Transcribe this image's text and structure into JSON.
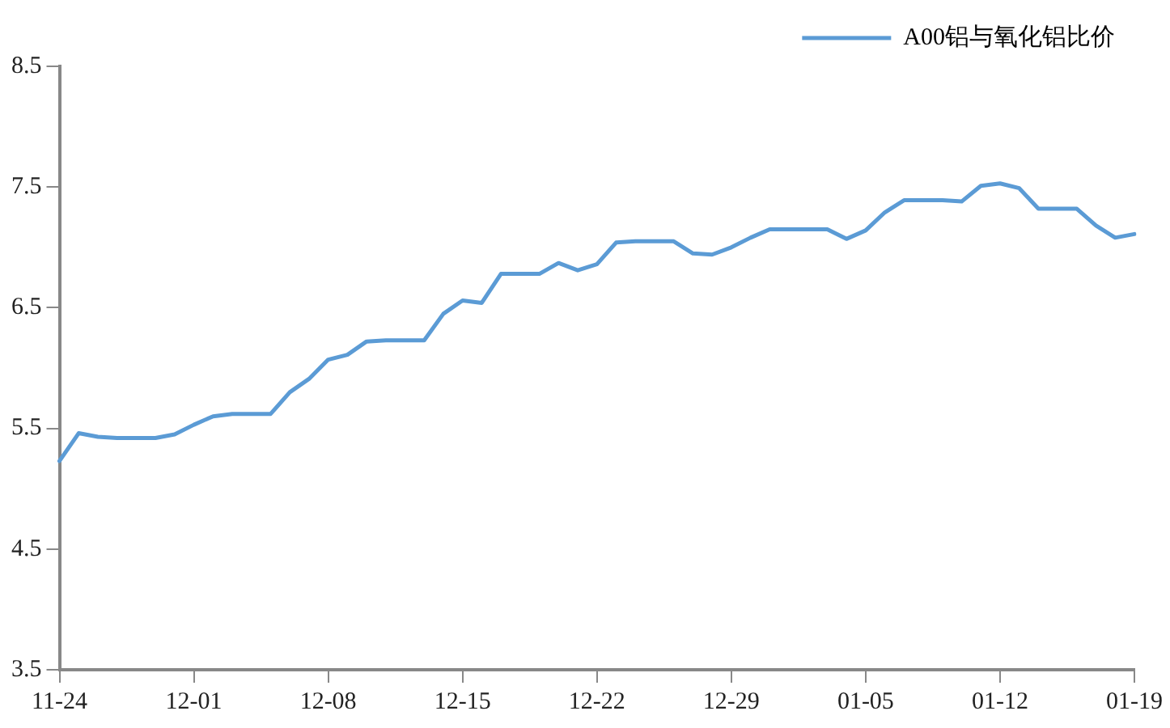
{
  "chart_data": {
    "type": "line",
    "categories": [
      "11-24",
      null,
      null,
      null,
      null,
      null,
      null,
      "12-01",
      null,
      null,
      null,
      null,
      null,
      null,
      "12-08",
      null,
      null,
      null,
      null,
      null,
      null,
      "12-15",
      null,
      null,
      null,
      null,
      null,
      null,
      "12-22",
      null,
      null,
      null,
      null,
      null,
      null,
      "12-29",
      null,
      null,
      null,
      null,
      null,
      null,
      "01-05",
      null,
      null,
      null,
      null,
      null,
      null,
      "01-12",
      null,
      null,
      null,
      null,
      null,
      null,
      "01-19"
    ],
    "series": [
      {
        "name": "A00铝与氧化铝比价",
        "color": "#5b9bd5",
        "values": [
          5.23,
          5.46,
          5.43,
          5.42,
          5.42,
          5.42,
          5.45,
          5.53,
          5.6,
          5.62,
          5.62,
          5.62,
          5.8,
          5.91,
          6.07,
          6.11,
          6.22,
          6.23,
          6.23,
          6.23,
          6.45,
          6.56,
          6.54,
          6.78,
          6.78,
          6.78,
          6.87,
          6.81,
          6.86,
          7.04,
          7.05,
          7.05,
          7.05,
          6.95,
          6.94,
          7.0,
          7.08,
          7.15,
          7.15,
          7.15,
          7.15,
          7.07,
          7.14,
          7.29,
          7.39,
          7.39,
          7.39,
          7.38,
          7.51,
          7.53,
          7.49,
          7.32,
          7.32,
          7.32,
          7.18,
          7.08,
          7.11
        ]
      }
    ],
    "ylim": [
      3.5,
      8.5
    ],
    "yticks": [
      3.5,
      4.5,
      5.5,
      6.5,
      7.5,
      8.5
    ],
    "grid": false,
    "legend": "top right",
    "marker": "none",
    "line_style": "solid"
  }
}
